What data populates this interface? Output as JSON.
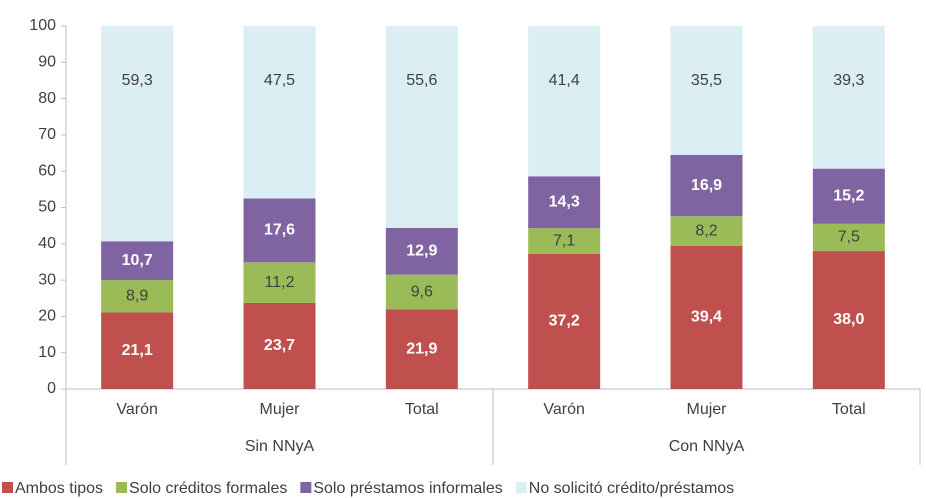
{
  "chart_data": {
    "type": "stacked_bar",
    "categories": [
      "Varón",
      "Mujer",
      "Total",
      "Varón",
      "Mujer",
      "Total"
    ],
    "groups": [
      "Sin NNyA",
      "Con NNyA"
    ],
    "series": [
      {
        "name": "Ambos tipos",
        "color": "#c0504d",
        "values": [
          21.1,
          23.7,
          21.9,
          37.2,
          39.4,
          38.0
        ],
        "value_labels": [
          "21,1",
          "23,7",
          "21,9",
          "37,2",
          "39,4",
          "38,0"
        ]
      },
      {
        "name": "Solo créditos formales",
        "color": "#9bbb59",
        "values": [
          8.9,
          11.2,
          9.6,
          7.1,
          8.2,
          7.5
        ],
        "value_labels": [
          "8,9",
          "11,2",
          "9,6",
          "7,1",
          "8,2",
          "7,5"
        ]
      },
      {
        "name": "Solo préstamos informales",
        "color": "#8064a2",
        "values": [
          10.7,
          17.6,
          12.9,
          14.3,
          16.9,
          15.2
        ],
        "value_labels": [
          "10,7",
          "17,6",
          "12,9",
          "14,3",
          "16,9",
          "15,2"
        ]
      },
      {
        "name": "No solicitó crédito/préstamos",
        "color": "#dbeef4",
        "values": [
          59.3,
          47.5,
          55.6,
          41.4,
          35.5,
          39.3
        ],
        "value_labels": [
          "59,3",
          "47,5",
          "55,6",
          "41,4",
          "35,5",
          "39,3"
        ]
      }
    ],
    "ylim": [
      0,
      100
    ],
    "yticks": [
      0,
      10,
      20,
      30,
      40,
      50,
      60,
      70,
      80,
      90,
      100
    ],
    "grid": false,
    "legend": "bottom"
  }
}
